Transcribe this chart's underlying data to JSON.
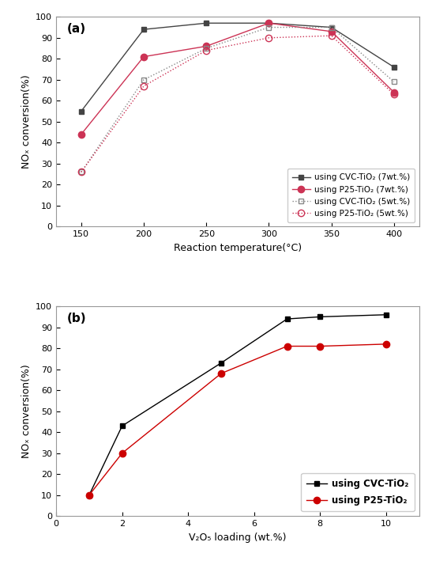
{
  "panel_a": {
    "title": "(a)",
    "series": [
      {
        "label": "using CVC-TiO₂ (7wt.%)",
        "x": [
          150,
          200,
          250,
          300,
          350,
          400
        ],
        "y": [
          55,
          94,
          97,
          97,
          95,
          76
        ],
        "color": "#444444",
        "linestyle": "-",
        "marker": "s",
        "markersize": 5,
        "fillstyle": "full"
      },
      {
        "label": "using P25-TiO₂ (7wt.%)",
        "x": [
          150,
          200,
          250,
          300,
          350,
          400
        ],
        "y": [
          44,
          81,
          86,
          97,
          93,
          64
        ],
        "color": "#cc3355",
        "linestyle": "-",
        "marker": "o",
        "markersize": 6,
        "fillstyle": "full"
      },
      {
        "label": "using CVC-TiO₂ (5wt.%)",
        "x": [
          150,
          200,
          250,
          300,
          350,
          400
        ],
        "y": [
          26,
          70,
          85,
          95,
          95,
          69
        ],
        "color": "#888888",
        "linestyle": ":",
        "marker": "s",
        "markersize": 5,
        "fillstyle": "none"
      },
      {
        "label": "using P25-TiO₂ (5wt.%)",
        "x": [
          150,
          200,
          250,
          300,
          350,
          400
        ],
        "y": [
          26,
          67,
          84,
          90,
          91,
          63
        ],
        "color": "#cc3355",
        "linestyle": ":",
        "marker": "o",
        "markersize": 6,
        "fillstyle": "none"
      }
    ],
    "xlabel": "Reaction temperature(°C)",
    "ylabel": "NOₓ conversion(%)",
    "xlim": [
      130,
      420
    ],
    "ylim": [
      0,
      100
    ],
    "xticks": [
      150,
      200,
      250,
      300,
      350,
      400
    ],
    "yticks": [
      0,
      10,
      20,
      30,
      40,
      50,
      60,
      70,
      80,
      90,
      100
    ]
  },
  "panel_b": {
    "title": "(b)",
    "series": [
      {
        "label": "using CVC-TiO₂",
        "x": [
          1,
          2,
          5,
          7,
          8,
          10
        ],
        "y": [
          10,
          43,
          73,
          94,
          95,
          96
        ],
        "color": "#000000",
        "linestyle": "-",
        "marker": "s",
        "markersize": 5,
        "fillstyle": "full"
      },
      {
        "label": "using P25-TiO₂",
        "x": [
          1,
          2,
          5,
          7,
          8,
          10
        ],
        "y": [
          10,
          30,
          68,
          81,
          81,
          82
        ],
        "color": "#cc0000",
        "linestyle": "-",
        "marker": "o",
        "markersize": 6,
        "fillstyle": "full"
      }
    ],
    "xlabel": "V₂O₅ loading (wt.%)",
    "ylabel": "NOₓ conversion(%)",
    "xlim": [
      0,
      11
    ],
    "ylim": [
      0,
      100
    ],
    "xticks": [
      0,
      2,
      4,
      6,
      8,
      10
    ],
    "yticks": [
      0,
      10,
      20,
      30,
      40,
      50,
      60,
      70,
      80,
      90,
      100
    ]
  },
  "figure_bgcolor": "#ffffff",
  "axes_bgcolor": "#ffffff",
  "figsize": [
    5.47,
    7.09
  ],
  "dpi": 100
}
